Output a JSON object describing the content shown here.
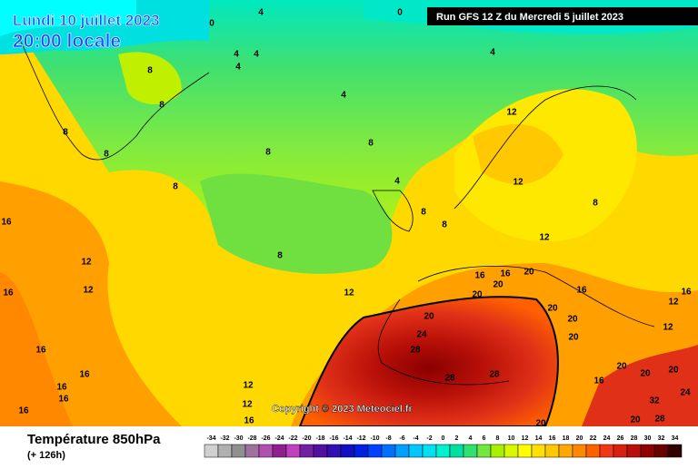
{
  "header": {
    "date": "Lundi 10 juillet 2023",
    "time": "20:00 locale",
    "run": "Run GFS 12 Z du Mercredi 5 juillet 2023"
  },
  "copyright": "Copyright © 2023 Meteociel.fr",
  "footer": {
    "title": "Température 850hPa",
    "lead": "(+ 126h)"
  },
  "scale": {
    "labels": [
      -34,
      -32,
      -30,
      -28,
      -26,
      -24,
      -22,
      -20,
      -18,
      -16,
      -14,
      -12,
      -10,
      -8,
      -6,
      -4,
      -2,
      0,
      2,
      4,
      6,
      8,
      10,
      12,
      14,
      16,
      18,
      20,
      22,
      24,
      26,
      28,
      30,
      32,
      34
    ],
    "colors": [
      "#d0d0d0",
      "#b0b0b0",
      "#909090",
      "#a070a0",
      "#b050b0",
      "#902090",
      "#c040c0",
      "#7020a0",
      "#5010a0",
      "#3010b0",
      "#1010c0",
      "#0020e0",
      "#0040ff",
      "#0070ff",
      "#00a0ff",
      "#00c8ff",
      "#00e0f0",
      "#00f0d0",
      "#00e0a0",
      "#30e070",
      "#70e840",
      "#a8f000",
      "#d8f800",
      "#ffff00",
      "#ffe000",
      "#ffc800",
      "#ffa800",
      "#ff8800",
      "#ff6000",
      "#f03818",
      "#d82010",
      "#b81008",
      "#900000",
      "#680000",
      "#300000"
    ]
  },
  "contour_labels": [
    0,
    4,
    0,
    4,
    4,
    4,
    4,
    8,
    8,
    4,
    8,
    8,
    8,
    8,
    8,
    12,
    12,
    4,
    8,
    8,
    12,
    8,
    16,
    12,
    12,
    16,
    8,
    12,
    16,
    20,
    16,
    20,
    20,
    20,
    24,
    28,
    28,
    28,
    20,
    20,
    16,
    20,
    12,
    16,
    12,
    16,
    16,
    16,
    16,
    16,
    12,
    12,
    16,
    20,
    16,
    20,
    20,
    20,
    24,
    32,
    28,
    20
  ]
}
